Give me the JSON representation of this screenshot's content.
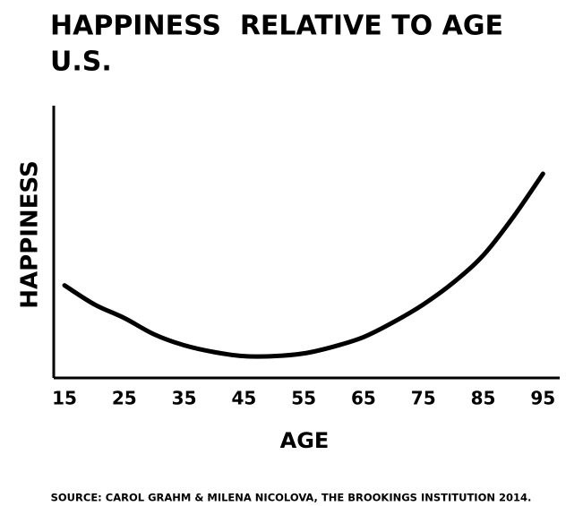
{
  "chart_data": {
    "type": "line",
    "title": "HAPPINESS  RELATIVE TO AGE",
    "subtitle": "U.S.",
    "x_label": "AGE",
    "y_label": "HAPPINESS",
    "source": "SOURCE: CAROL GRAHM & MILENA NICOLOVA, THE BROOKINGS INSTITUTION 2014.",
    "x": [
      15,
      20,
      25,
      30,
      35,
      40,
      45,
      50,
      55,
      60,
      65,
      70,
      75,
      80,
      85,
      90,
      95
    ],
    "series": [
      {
        "color": "#000000",
        "values": [
          34,
          27,
          22,
          16,
          12,
          9.5,
          8,
          8,
          9,
          11.5,
          15,
          20.5,
          27,
          35,
          45,
          59,
          75
        ]
      }
    ],
    "xlim": [
      13.2,
      97.8
    ],
    "ylim": [
      0,
      100
    ],
    "xticks": [
      15,
      25,
      35,
      45,
      55,
      65,
      75,
      85,
      95
    ],
    "grid": false
  }
}
